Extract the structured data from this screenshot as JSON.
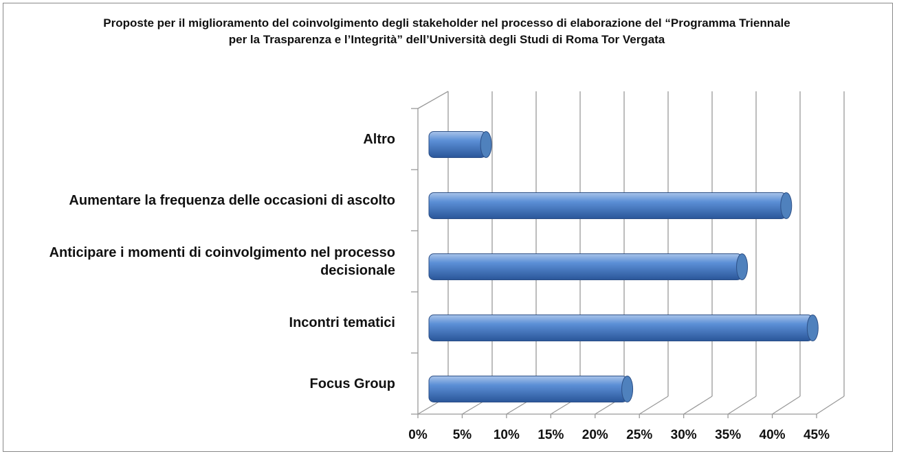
{
  "chart_data": {
    "type": "bar",
    "orientation": "horizontal",
    "title": "Proposte per il miglioramento del coinvolgimento degli stakeholder nel processo di elaborazione del “Programma Triennale per la Trasparenza e l’Integrità” dell’Università degli Studi di Roma Tor Vergata",
    "categories": [
      "Altro",
      "Aumentare la frequenza delle occasioni di ascolto",
      "Anticipare i momenti di coinvolgimento nel processo decisionale",
      "Incontri tematici",
      "Focus Group"
    ],
    "values": [
      6,
      40,
      35,
      43,
      22
    ],
    "color": "#4f81bd",
    "xlim": [
      0,
      45
    ],
    "xticks": [
      {
        "value": 0,
        "label": "0%"
      },
      {
        "value": 5,
        "label": "5%"
      },
      {
        "value": 10,
        "label": "10%"
      },
      {
        "value": 15,
        "label": "15%"
      },
      {
        "value": 20,
        "label": "20%"
      },
      {
        "value": 25,
        "label": "25%"
      },
      {
        "value": 30,
        "label": "30%"
      },
      {
        "value": 35,
        "label": "35%"
      },
      {
        "value": 40,
        "label": "40%"
      },
      {
        "value": 45,
        "label": "45%"
      }
    ],
    "grid": true
  }
}
